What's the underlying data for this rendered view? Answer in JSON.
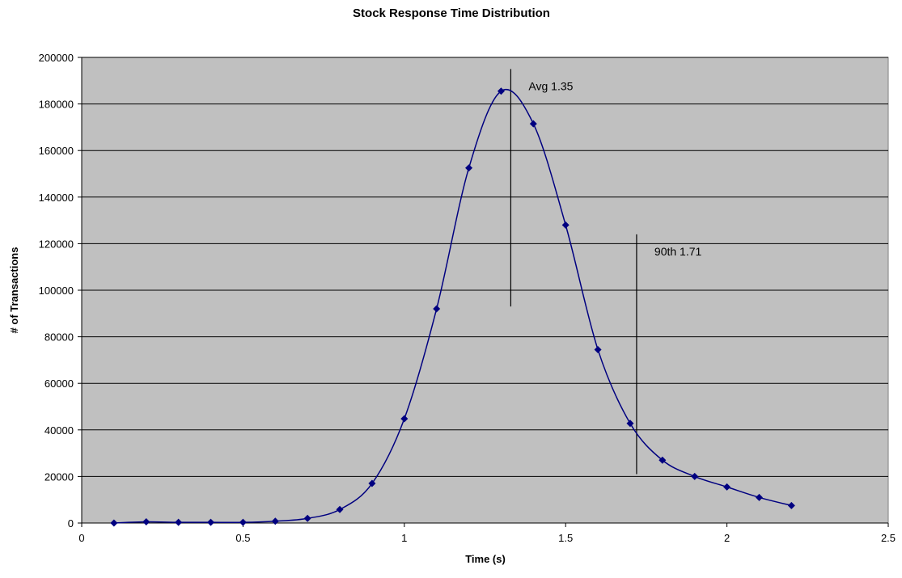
{
  "chart_data": {
    "type": "scatter",
    "title": "Stock Response Time Distribution",
    "xlabel": "Time (s)",
    "ylabel": "# of Transactions",
    "xlim": [
      0,
      2.5
    ],
    "ylim": [
      0,
      200000
    ],
    "x_ticks": [
      "0",
      "0.5",
      "1",
      "1.5",
      "2",
      "2.5"
    ],
    "y_ticks": [
      "0",
      "20000",
      "40000",
      "60000",
      "80000",
      "100000",
      "120000",
      "140000",
      "160000",
      "180000",
      "200000"
    ],
    "x_tick_values": [
      0,
      0.5,
      1,
      1.5,
      2,
      2.5
    ],
    "y_tick_values": [
      0,
      20000,
      40000,
      60000,
      80000,
      100000,
      120000,
      140000,
      160000,
      180000,
      200000
    ],
    "grid": "horizontal",
    "smooth_line": true,
    "series": [
      {
        "color": "#000080",
        "marker": "diamond",
        "x": [
          0.1,
          0.2,
          0.3,
          0.4,
          0.5,
          0.6,
          0.7,
          0.8,
          0.9,
          1.0,
          1.1,
          1.2,
          1.3,
          1.4,
          1.5,
          1.6,
          1.7,
          1.8,
          1.9,
          2.0,
          2.1,
          2.2
        ],
        "y": [
          0,
          500,
          300,
          300,
          300,
          800,
          2000,
          5800,
          17000,
          44800,
          92000,
          152500,
          185500,
          171500,
          128000,
          74500,
          42800,
          27000,
          20000,
          15500,
          11000,
          7500
        ]
      }
    ],
    "annotations": [
      {
        "label": "Avg 1.35",
        "x": 1.33,
        "y_top": 195000,
        "y_bottom": 93000
      },
      {
        "label": "90th 1.71",
        "x": 1.72,
        "y_top": 124000,
        "y_bottom": 21000
      }
    ],
    "plot_background": "#c0c0c0",
    "gridline_color": "#000000"
  }
}
